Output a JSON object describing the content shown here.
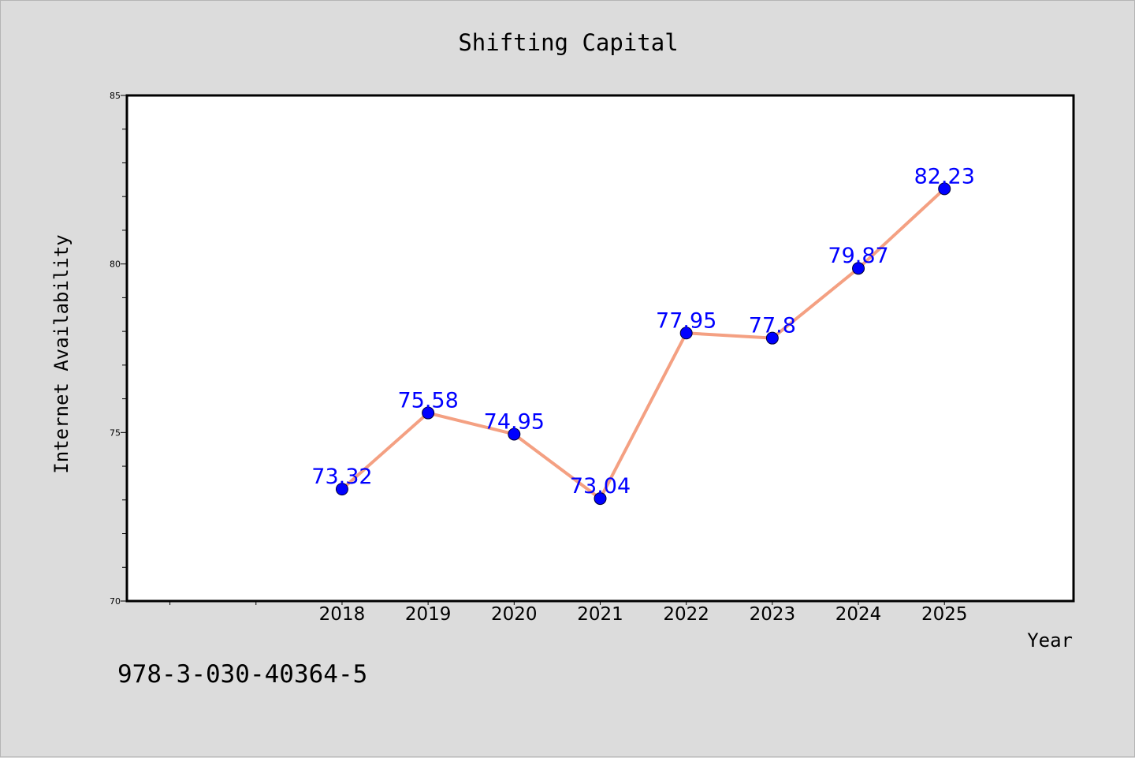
{
  "chart_data": {
    "type": "line",
    "title": "Shifting Capital",
    "xlabel": "Year",
    "ylabel": "Internet Availability",
    "x": [
      2018,
      2019,
      2020,
      2021,
      2022,
      2023,
      2024,
      2025
    ],
    "x_ticks": [
      "2018",
      "2019",
      "2020",
      "2021",
      "2022",
      "2023",
      "2024",
      "2025"
    ],
    "xlim": [
      2015.5,
      2026.5
    ],
    "ylim": [
      70,
      85
    ],
    "y_ticks": [
      "70",
      "75",
      "80",
      "85"
    ],
    "series": [
      {
        "values": [
          73.32,
          75.58,
          74.95,
          73.04,
          77.95,
          77.8,
          79.87,
          82.23
        ],
        "labels": [
          "73.32",
          "75.58",
          "74.95",
          "73.04",
          "77.95",
          "77.8",
          "79.87",
          "82.23"
        ]
      }
    ],
    "line_color": "#f4a082",
    "marker_color": "#0000ff",
    "label_color": "#0000ff",
    "grid": false,
    "legend": "none"
  },
  "footer": {
    "code": "978-3-030-40364-5"
  }
}
